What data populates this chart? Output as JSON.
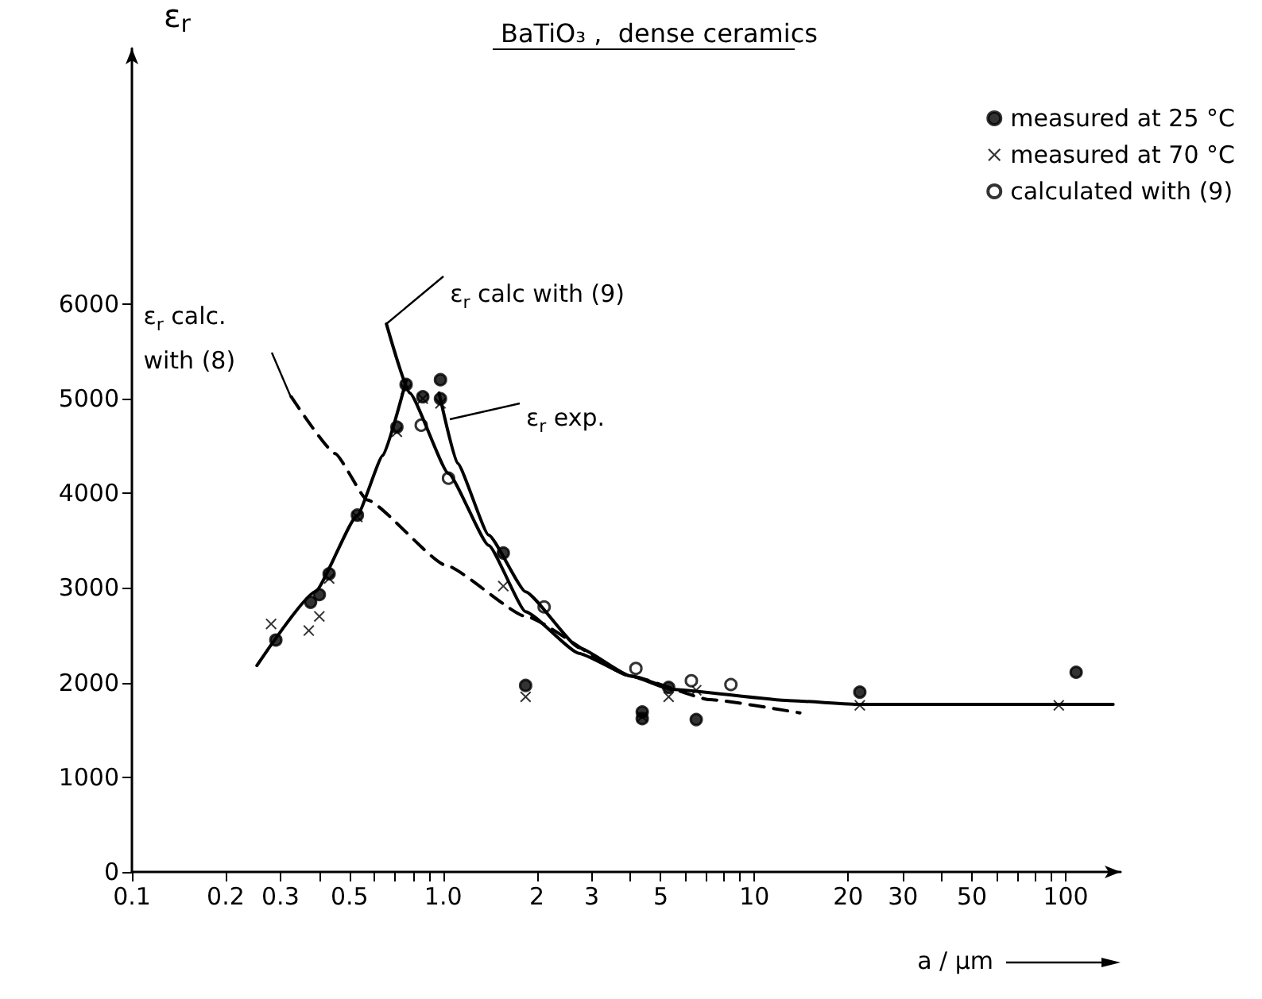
{
  "chart_data": {
    "type": "scatter",
    "title": "BaTiO₃ ,  dense ceramics",
    "xlabel": "a / µm",
    "ylabel": "ε$_{r}$",
    "log": "x",
    "grid": false,
    "legend": "top right",
    "xlim": [
      0.1,
      150
    ],
    "ylim": [
      0,
      8700
    ],
    "xticks": [
      {
        "value": 0.1,
        "label": "0.1"
      },
      {
        "value": 0.2,
        "label": "0.2"
      },
      {
        "value": 0.3,
        "label": "0.3"
      },
      {
        "value": 0.4,
        "label": null
      },
      {
        "value": 0.5,
        "label": "0.5"
      },
      {
        "value": 0.6,
        "label": null
      },
      {
        "value": 0.7,
        "label": null
      },
      {
        "value": 0.8,
        "label": null
      },
      {
        "value": 0.9,
        "label": null
      },
      {
        "value": 1,
        "label": "1.0"
      },
      {
        "value": 2,
        "label": "2"
      },
      {
        "value": 3,
        "label": "3"
      },
      {
        "value": 4,
        "label": null
      },
      {
        "value": 5,
        "label": "5"
      },
      {
        "value": 6,
        "label": null
      },
      {
        "value": 7,
        "label": null
      },
      {
        "value": 8,
        "label": null
      },
      {
        "value": 9,
        "label": null
      },
      {
        "value": 10,
        "label": "10"
      },
      {
        "value": 20,
        "label": "20"
      },
      {
        "value": 30,
        "label": "30"
      },
      {
        "value": 40,
        "label": null
      },
      {
        "value": 50,
        "label": "50"
      },
      {
        "value": 60,
        "label": null
      },
      {
        "value": 70,
        "label": null
      },
      {
        "value": 80,
        "label": null
      },
      {
        "value": 90,
        "label": null
      },
      {
        "value": 100,
        "label": "100"
      }
    ],
    "yticks": [
      0,
      1000,
      2000,
      3000,
      4000,
      5000,
      6000
    ],
    "series": [
      {
        "name": "measured at 25 °C",
        "marker": "circle",
        "color": "#000000",
        "x": [
          0.29,
          0.375,
          0.4,
          0.43,
          0.53,
          0.71,
          0.76,
          0.86,
          0.98,
          0.98,
          1.56,
          1.84,
          4.36,
          4.36,
          5.3,
          6.5,
          21.8,
          108
        ],
        "values": [
          2450,
          2850,
          2930,
          3150,
          3770,
          4700,
          5150,
          5020,
          5200,
          5000,
          3370,
          1970,
          1690,
          1620,
          1950,
          1610,
          1900,
          2110
        ]
      },
      {
        "name": "measured at 70 °C",
        "marker": "cross",
        "color": "#000000",
        "x": [
          0.28,
          0.37,
          0.4,
          0.43,
          0.53,
          0.71,
          0.76,
          0.86,
          0.98,
          1.56,
          1.84,
          4.36,
          5.3,
          6.5,
          21.8,
          95
        ],
        "values": [
          2620,
          2550,
          2700,
          3100,
          3750,
          4650,
          5100,
          5000,
          4950,
          3020,
          1850,
          1640,
          1850,
          1920,
          1760,
          1760
        ]
      },
      {
        "name": "calculated with (9)",
        "marker": "circle",
        "color": "#ffffff",
        "x": [
          0.85,
          1.04,
          2.11,
          4.16,
          6.27,
          8.4
        ],
        "values": [
          4720,
          4160,
          2800,
          2150,
          2020,
          1980
        ]
      },
      {
        "type": "line",
        "marker": "none",
        "line_style": "solid",
        "color": "#000000",
        "x": [
          0.252,
          0.388,
          0.53,
          0.64,
          0.76
        ],
        "values": [
          2180,
          2960,
          3770,
          4400,
          5190
        ]
      },
      {
        "type": "line",
        "marker": "none",
        "line_style": "solid",
        "color": "#000000",
        "x": [
          0.97,
          1.11,
          1.4,
          1.84,
          2.73,
          4.0,
          5.4,
          12.9,
          21.8,
          100,
          142
        ],
        "values": [
          5060,
          4320,
          3560,
          2960,
          2370,
          2070,
          1930,
          1810,
          1770,
          1770,
          1770
        ]
      },
      {
        "type": "line",
        "marker": "none",
        "line_style": "solid",
        "color": "#000000",
        "x": [
          0.657,
          0.78,
          1.04,
          1.4,
          1.84,
          2.73,
          4.0,
          5.4
        ],
        "values": [
          5790,
          5060,
          4210,
          3450,
          2750,
          2310,
          2070,
          1930
        ]
      },
      {
        "type": "line",
        "marker": "none",
        "line_style": "dashed",
        "color": "#000000",
        "x": [
          0.325,
          0.45,
          0.57,
          1.02,
          1.84,
          4.0,
          7.2,
          14.0
        ],
        "values": [
          5020,
          4420,
          3930,
          3240,
          2700,
          2070,
          1820,
          1680
        ]
      }
    ],
    "annotations": [
      {
        "text": "ε$_{r}$ calc with (9)",
        "x": 0.657,
        "y": 5790
      },
      {
        "text": "ε$_{r}$ calc.\nwith (8)",
        "x": 0.325,
        "y": 5020
      },
      {
        "text": "ε$_{r}$ exp.",
        "x": 1.05,
        "y": 4780
      }
    ]
  }
}
